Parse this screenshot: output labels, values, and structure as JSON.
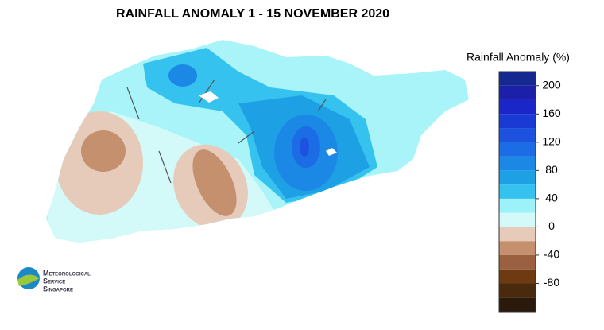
{
  "title": "RAINFALL ANOMALY 1 - 15 NOVEMBER 2020",
  "legend": {
    "title": "Rainfall Anomaly (%)",
    "range": [
      -120,
      220
    ],
    "ticks": [
      200,
      160,
      120,
      80,
      40,
      0,
      -40,
      -80
    ],
    "bands": [
      {
        "from": -120,
        "to": -100,
        "color": "#2b1a0c"
      },
      {
        "from": -100,
        "to": -80,
        "color": "#4a2a0c"
      },
      {
        "from": -80,
        "to": -60,
        "color": "#6e3a12"
      },
      {
        "from": -60,
        "to": -40,
        "color": "#9a6040"
      },
      {
        "from": -40,
        "to": -20,
        "color": "#c4906e"
      },
      {
        "from": -20,
        "to": 0,
        "color": "#e6cbbb"
      },
      {
        "from": 0,
        "to": 20,
        "color": "#d4f9f9"
      },
      {
        "from": 20,
        "to": 40,
        "color": "#9cf2f8"
      },
      {
        "from": 40,
        "to": 60,
        "color": "#36c2ee"
      },
      {
        "from": 60,
        "to": 80,
        "color": "#1ea0e4"
      },
      {
        "from": 80,
        "to": 100,
        "color": "#1c88e6"
      },
      {
        "from": 100,
        "to": 120,
        "color": "#1c6ce6"
      },
      {
        "from": 120,
        "to": 140,
        "color": "#1c52de"
      },
      {
        "from": 140,
        "to": 160,
        "color": "#1a3ad4"
      },
      {
        "from": 160,
        "to": 180,
        "color": "#1a26c8"
      },
      {
        "from": 180,
        "to": 200,
        "color": "#1c20a8"
      },
      {
        "from": 200,
        "to": 220,
        "color": "#152890"
      }
    ]
  },
  "logo": {
    "lines": [
      "Meteorological",
      "Service",
      "Singapore"
    ]
  }
}
